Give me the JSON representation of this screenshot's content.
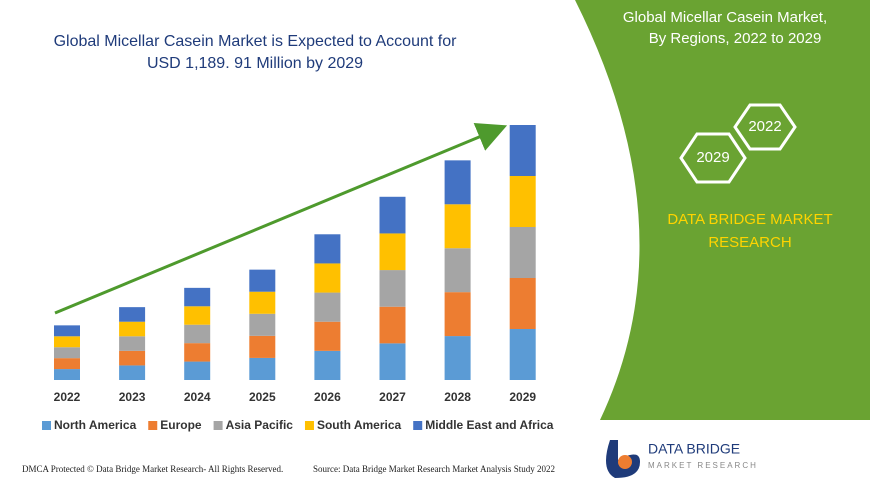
{
  "chart_data": {
    "type": "bar",
    "stacked": true,
    "title": [
      "Global Micellar Casein Market is Expected to Account for",
      "USD 1,189. 91 Million by 2029"
    ],
    "categories": [
      "2022",
      "2023",
      "2024",
      "2025",
      "2026",
      "2027",
      "2028",
      "2029"
    ],
    "series": [
      {
        "name": "North America",
        "color": "#5b9bd5",
        "values": [
          51,
          68,
          86,
          103,
          136,
          171,
          205,
          238
        ]
      },
      {
        "name": "Europe",
        "color": "#ed7d31",
        "values": [
          51,
          68,
          86,
          103,
          136,
          171,
          205,
          238
        ]
      },
      {
        "name": "Asia Pacific",
        "color": "#a5a5a5",
        "values": [
          51,
          68,
          86,
          103,
          136,
          171,
          205,
          238
        ]
      },
      {
        "name": "South America",
        "color": "#ffc000",
        "values": [
          51,
          68,
          86,
          103,
          136,
          171,
          205,
          238
        ]
      },
      {
        "name": "Middle East and Africa",
        "color": "#4472c4",
        "values": [
          51,
          68,
          86,
          103,
          136,
          171,
          205,
          238
        ]
      }
    ]
  },
  "panel": {
    "title": [
      "Global Micellar Casein Market,",
      "By Regions, 2022 to 2029"
    ],
    "hexagons": [
      "2022",
      "2029"
    ],
    "brand": [
      "DATA BRIDGE MARKET",
      "RESEARCH"
    ]
  },
  "logo": {
    "name": "DATA BRIDGE",
    "tagline": "MARKET RESEARCH"
  },
  "footer": {
    "left": "DMCA Protected © Data Bridge Market Research- All Rights Reserved.",
    "right": "Source: Data Bridge Market Research Market Analysis Study 2022"
  }
}
